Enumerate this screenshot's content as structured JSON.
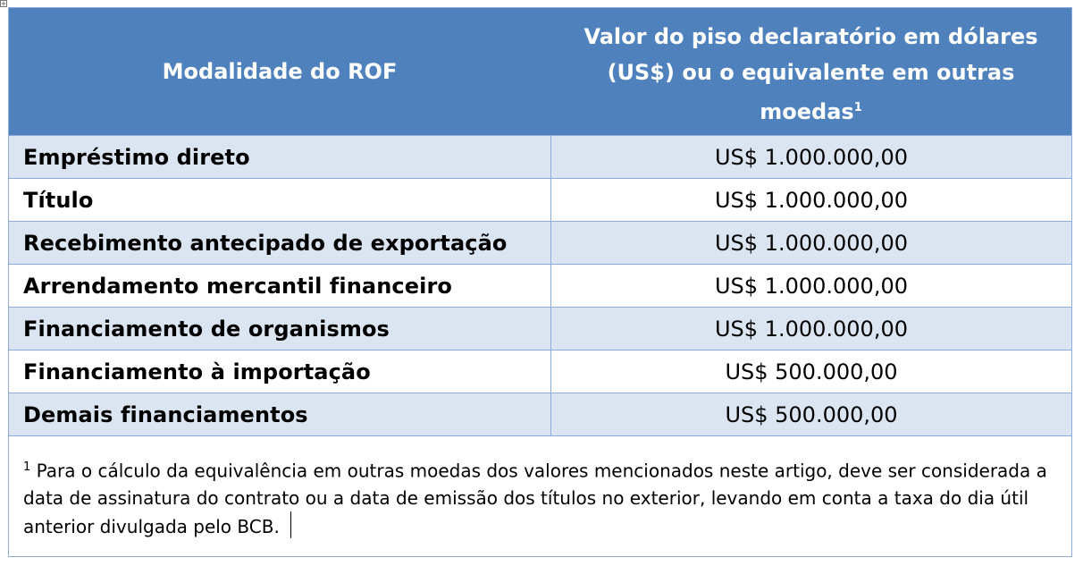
{
  "table": {
    "header": {
      "col1": "Modalidade do ROF",
      "col2": "Valor do piso declaratório em dólares (US$) ou o equivalente em outras moedas",
      "col2_sup": "1"
    },
    "rows": [
      {
        "modalidade": "Empréstimo direto",
        "valor": "US$ 1.000.000,00"
      },
      {
        "modalidade": "Título",
        "valor": "US$ 1.000.000,00"
      },
      {
        "modalidade": "Recebimento antecipado de exportação",
        "valor": "US$ 1.000.000,00"
      },
      {
        "modalidade": "Arrendamento mercantil financeiro",
        "valor": "US$ 1.000.000,00"
      },
      {
        "modalidade": "Financiamento de organismos",
        "valor": "US$ 1.000.000,00"
      },
      {
        "modalidade": "Financiamento à importação",
        "valor": "US$ 500.000,00"
      },
      {
        "modalidade": "Demais financiamentos",
        "valor": "US$ 500.000,00"
      }
    ],
    "footnote": {
      "marker": "1",
      "text": "Para o cálculo da equivalência em outras moedas dos valores mencionados neste artigo, deve ser considerada a data de assinatura do contrato ou a data de emissão dos títulos no exterior, levando em conta a taxa do dia útil anterior divulgada pelo BCB."
    }
  },
  "colors": {
    "header_bg": "#4f81bd",
    "row_shade": "#dbe5f1",
    "border": "#8eaadb"
  }
}
